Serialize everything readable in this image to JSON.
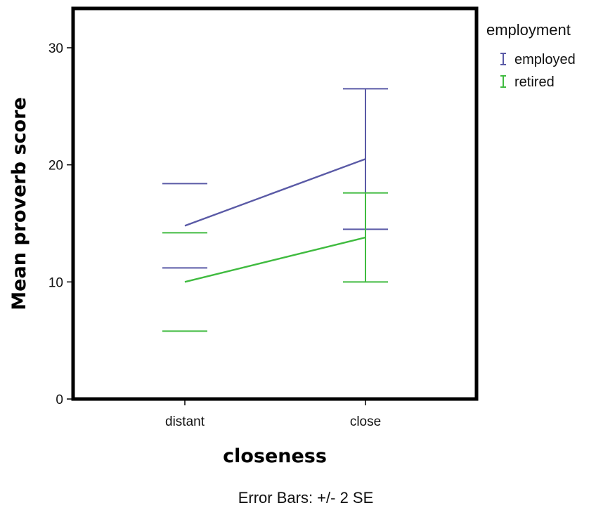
{
  "chart_data": {
    "type": "line",
    "categories": [
      "distant",
      "close"
    ],
    "xlabel": "closeness",
    "ylabel": "Mean proverb score",
    "ylim": [
      0,
      33
    ],
    "yticks": [
      0,
      10,
      20,
      30
    ],
    "grid": false,
    "legend": {
      "title": "employment",
      "placement": "right"
    },
    "series": [
      {
        "name": "employed",
        "color": "#5a5aa6",
        "values": [
          14.8,
          20.5
        ],
        "lower": [
          11.2,
          14.5
        ],
        "upper": [
          18.4,
          26.5
        ]
      },
      {
        "name": "retired",
        "color": "#40bb40",
        "values": [
          10.0,
          13.8
        ],
        "lower": [
          5.8,
          10.0
        ],
        "upper": [
          14.2,
          17.6
        ]
      }
    ],
    "footnote": "Error Bars: +/- 2 SE"
  }
}
